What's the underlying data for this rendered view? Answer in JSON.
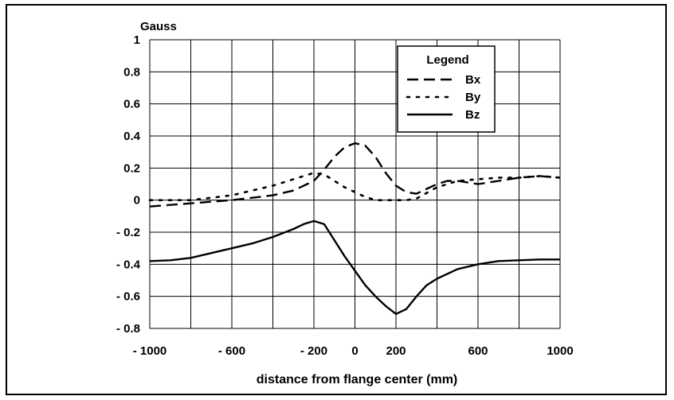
{
  "chart_data": {
    "type": "line",
    "ylabel": "Gauss",
    "xlabel": "distance from flange center (mm)",
    "xlim": [
      -1000,
      1000
    ],
    "ylim": [
      -0.8,
      1
    ],
    "x_ticks": [
      -1000,
      -800,
      -600,
      -400,
      -200,
      0,
      200,
      400,
      600,
      800,
      1000
    ],
    "x_tick_labels": [
      "- 1000",
      "",
      "- 600",
      "",
      "- 200",
      "0",
      "200",
      "",
      "600",
      "",
      "1000"
    ],
    "y_ticks": [
      -0.8,
      -0.6,
      -0.4,
      -0.2,
      0,
      0.2,
      0.4,
      0.6,
      0.8,
      1
    ],
    "y_tick_labels": [
      "- 0.8",
      "- 0.6",
      "- 0.4",
      "- 0.2",
      "0",
      "0.2",
      "0.4",
      "0.6",
      "0.8",
      "1"
    ],
    "grid": true,
    "legend": {
      "title": "Legend",
      "placement": "top-right"
    },
    "series": [
      {
        "name": "Bx",
        "style": "dash",
        "x": [
          -1000,
          -800,
          -600,
          -400,
          -300,
          -200,
          -150,
          -100,
          -50,
          0,
          50,
          100,
          150,
          200,
          250,
          300,
          350,
          400,
          450,
          500,
          600,
          700,
          800,
          900,
          1000
        ],
        "y": [
          -0.04,
          -0.02,
          0,
          0.03,
          0.06,
          0.12,
          0.19,
          0.27,
          0.33,
          0.355,
          0.34,
          0.27,
          0.17,
          0.09,
          0.05,
          0.04,
          0.07,
          0.1,
          0.12,
          0.12,
          0.1,
          0.12,
          0.14,
          0.15,
          0.14
        ]
      },
      {
        "name": "By",
        "style": "dot",
        "x": [
          -1000,
          -800,
          -600,
          -400,
          -300,
          -200,
          -150,
          -100,
          -50,
          0,
          50,
          100,
          150,
          200,
          250,
          300,
          400,
          500,
          600,
          700,
          800,
          900,
          1000
        ],
        "y": [
          0,
          0,
          0.03,
          0.09,
          0.13,
          0.17,
          0.16,
          0.12,
          0.08,
          0.05,
          0.02,
          0,
          0,
          0,
          0,
          0.01,
          0.08,
          0.12,
          0.13,
          0.14,
          0.14,
          0.15,
          0.14
        ]
      },
      {
        "name": "Bz",
        "style": "solid",
        "x": [
          -1000,
          -900,
          -800,
          -700,
          -600,
          -500,
          -400,
          -300,
          -250,
          -200,
          -150,
          -100,
          -50,
          0,
          50,
          100,
          150,
          200,
          250,
          300,
          350,
          400,
          500,
          600,
          700,
          800,
          900,
          1000
        ],
        "y": [
          -0.38,
          -0.375,
          -0.36,
          -0.33,
          -0.3,
          -0.27,
          -0.23,
          -0.18,
          -0.15,
          -0.13,
          -0.15,
          -0.25,
          -0.35,
          -0.44,
          -0.53,
          -0.6,
          -0.66,
          -0.71,
          -0.68,
          -0.6,
          -0.53,
          -0.49,
          -0.43,
          -0.4,
          -0.38,
          -0.375,
          -0.37,
          -0.37
        ]
      }
    ]
  }
}
